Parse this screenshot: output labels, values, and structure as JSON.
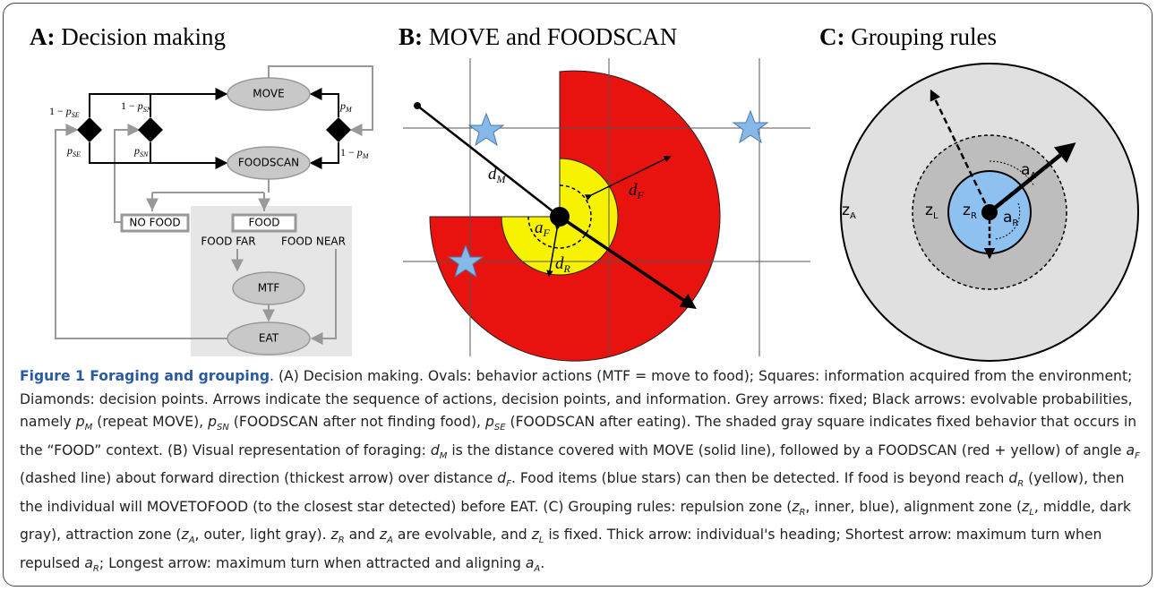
{
  "panels": {
    "a": {
      "letter": "A:",
      "title": "Decision making",
      "nodes": {
        "move": "MOVE",
        "foodscan": "FOODSCAN",
        "no_food": "NO FOOD",
        "food": "FOOD",
        "food_far": "FOOD FAR",
        "food_near": "FOOD NEAR",
        "mtf": "MTF",
        "eat": "EAT"
      },
      "probabilities": [
        {
          "prefix": "1 − ",
          "base": "p",
          "sub": "SE"
        },
        {
          "base": "p",
          "sub": "SE"
        },
        {
          "prefix": "1 − ",
          "base": "p",
          "sub": "SN"
        },
        {
          "base": "p",
          "sub": "SN"
        },
        {
          "base": "p",
          "sub": "M"
        },
        {
          "prefix": "1 − ",
          "base": "p",
          "sub": "M"
        }
      ]
    },
    "b": {
      "letter": "B:",
      "title": "MOVE and FOODSCAN",
      "labels": [
        {
          "base": "d",
          "sub": "M"
        },
        {
          "base": "d",
          "sub": "F"
        },
        {
          "base": "a",
          "sub": "F"
        },
        {
          "base": "d",
          "sub": "R"
        }
      ]
    },
    "c": {
      "letter": "C:",
      "title": "Grouping rules",
      "labels": [
        {
          "base": "z",
          "sub": "A"
        },
        {
          "base": "z",
          "sub": "L"
        },
        {
          "base": "z",
          "sub": "R"
        },
        {
          "base": "a",
          "sub": "A"
        },
        {
          "base": "a",
          "sub": "R"
        }
      ]
    }
  },
  "caption": [
    {
      "text": "Figure 1 Foraging and grouping",
      "format": "bold"
    },
    {
      "text": ". (A) Decision making. Ovals: behavior actions (MTF = move to food); Squares: information acquired from the environment; Diamonds: decision points. Arrows indicate the sequence of actions, decision points, and information. Grey arrows: fixed; Black arrows: evolvable probabilities, namely "
    },
    {
      "text": "p",
      "format": "italic"
    },
    {
      "text": "M",
      "format": "sub"
    },
    {
      "text": " (repeat MOVE), "
    },
    {
      "text": "p",
      "format": "italic"
    },
    {
      "text": "SN",
      "format": "sub"
    },
    {
      "text": " (FOODSCAN after not finding food), "
    },
    {
      "text": "p",
      "format": "italic"
    },
    {
      "text": "SE",
      "format": "sub"
    },
    {
      "text": " (FOODSCAN after eating). The shaded gray square indicates fixed behavior that occurs in the “FOOD” context. (B) Visual representation of foraging: "
    },
    {
      "text": "d",
      "format": "italic"
    },
    {
      "text": "M",
      "format": "sub"
    },
    {
      "text": " is the distance covered with MOVE (solid line), followed by a FOODSCAN (red + yellow) of angle "
    },
    {
      "text": "a",
      "format": "italic"
    },
    {
      "text": "F",
      "format": "sub"
    },
    {
      "text": " (dashed line) about forward direction (thickest arrow) over distance "
    },
    {
      "text": "d",
      "format": "italic"
    },
    {
      "text": "F",
      "format": "sub"
    },
    {
      "text": ". Food items (blue stars) can then be detected. If food is beyond reach "
    },
    {
      "text": "d",
      "format": "italic"
    },
    {
      "text": "R",
      "format": "sub"
    },
    {
      "text": " (yellow), then the individual will MOVETOFOOD (to the closest star detected) before EAT. (C) Grouping rules: repulsion zone ("
    },
    {
      "text": "z",
      "format": "italic"
    },
    {
      "text": "R",
      "format": "sub"
    },
    {
      "text": ", inner, blue), alignment zone ("
    },
    {
      "text": "z",
      "format": "italic"
    },
    {
      "text": "L",
      "format": "sub"
    },
    {
      "text": ", middle, dark gray), attraction zone ("
    },
    {
      "text": "z",
      "format": "italic"
    },
    {
      "text": "A",
      "format": "sub"
    },
    {
      "text": ", outer, light gray). "
    },
    {
      "text": "z",
      "format": "italic"
    },
    {
      "text": "R",
      "format": "sub"
    },
    {
      "text": " and "
    },
    {
      "text": "z",
      "format": "italic"
    },
    {
      "text": "A",
      "format": "sub"
    },
    {
      "text": " are evolvable, and "
    },
    {
      "text": "z",
      "format": "italic"
    },
    {
      "text": "L",
      "format": "sub"
    },
    {
      "text": " is fixed. Thick arrow: individual's heading; Shortest arrow: maximum turn when repulsed "
    },
    {
      "text": "a",
      "format": "italic"
    },
    {
      "text": "R",
      "format": "sub"
    },
    {
      "text": "; Longest arrow: maximum turn when attracted and aligning "
    },
    {
      "text": "a",
      "format": "italic"
    },
    {
      "text": "A",
      "format": "sub"
    },
    {
      "text": "."
    }
  ]
}
